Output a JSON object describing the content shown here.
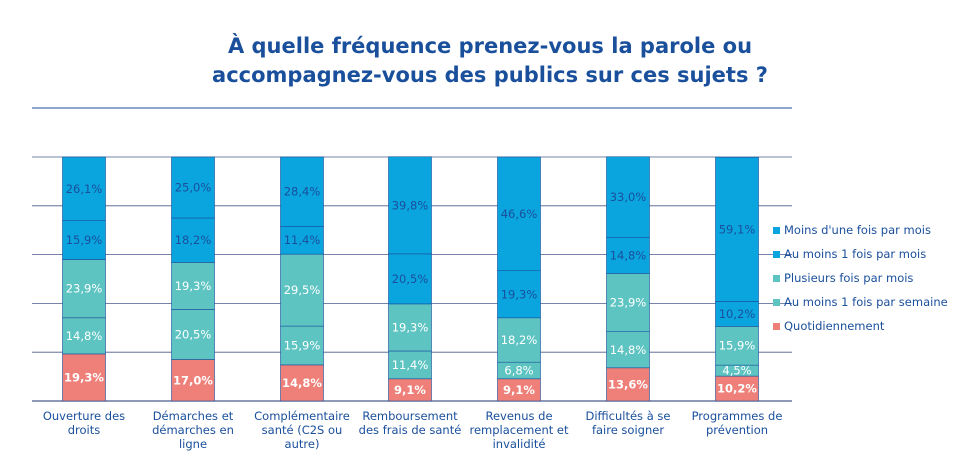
{
  "chart_data": {
    "type": "bar",
    "stacked": true,
    "title_lines": [
      "À quelle fréquence prenez-vous la parole ou",
      "accompagnez-vous des publics sur ces sujets ?"
    ],
    "categories": [
      [
        "Ouverture des",
        "droits"
      ],
      [
        "Démarches et",
        "démarches en",
        "ligne"
      ],
      [
        "Complémentaire",
        "santé (C2S ou",
        "autre)"
      ],
      [
        "Remboursement",
        "des frais de santé"
      ],
      [
        "Revenus de",
        "remplacement et",
        "invalidité"
      ],
      [
        "Difficultés à se",
        "faire soigner"
      ],
      [
        "Programmes de",
        "prévention"
      ]
    ],
    "series": [
      {
        "name": "Quotidiennement",
        "color": "#ee8079",
        "label_color": "#ffffff",
        "values": [
          19.3,
          17.0,
          14.8,
          9.1,
          9.1,
          13.6,
          10.2
        ],
        "labels": [
          "19,3%",
          "17,0%",
          "14,8%",
          "9,1%",
          "9,1%",
          "13,6%",
          "10,2%"
        ]
      },
      {
        "name": "Au moins 1 fois par semaine",
        "color": "#5ec4c2",
        "label_color": "#ffffff",
        "values": [
          14.8,
          20.5,
          15.9,
          11.4,
          6.8,
          14.8,
          4.5
        ],
        "labels": [
          "14,8%",
          "20,5%",
          "15,9%",
          "11,4%",
          "6,8%",
          "14,8%",
          "4,5%"
        ]
      },
      {
        "name": "Plusieurs fois par mois",
        "color": "#5ec4c2",
        "label_color": "#ffffff",
        "values": [
          23.9,
          19.3,
          29.5,
          19.3,
          18.2,
          23.9,
          15.9
        ],
        "labels": [
          "23,9%",
          "19,3%",
          "29,5%",
          "19,3%",
          "18,2%",
          "23,9%",
          "15,9%"
        ]
      },
      {
        "name": "Au moins 1 fois par mois",
        "color": "#0aa5df",
        "label_color": "#1a4f9c",
        "values": [
          15.9,
          18.2,
          11.4,
          20.5,
          19.3,
          14.8,
          10.2
        ],
        "labels": [
          "15,9%",
          "18,2%",
          "11,4%",
          "20,5%",
          "19,3%",
          "14,8%",
          "10,2%"
        ]
      },
      {
        "name": "Moins d'une fois par mois",
        "color": "#0aa5df",
        "label_color": "#1a4f9c",
        "values": [
          26.1,
          25.0,
          28.4,
          39.8,
          46.6,
          33.0,
          59.1
        ],
        "labels": [
          "26,1%",
          "25,0%",
          "28,4%",
          "39,8%",
          "46,6%",
          "33,0%",
          "59,1%"
        ]
      }
    ],
    "legend_order": [
      "Moins d'une fois par mois",
      "Au moins 1 fois par mois",
      "Plusieurs fois par mois",
      "Au moins 1 fois par semaine",
      "Quotidiennement"
    ],
    "ylim": [
      0,
      100
    ],
    "grid": true,
    "legend_position": "right"
  },
  "colors": {
    "title": "#1a4f9c",
    "grid": "#4a5a8c",
    "divider": "#1a4f9c"
  }
}
